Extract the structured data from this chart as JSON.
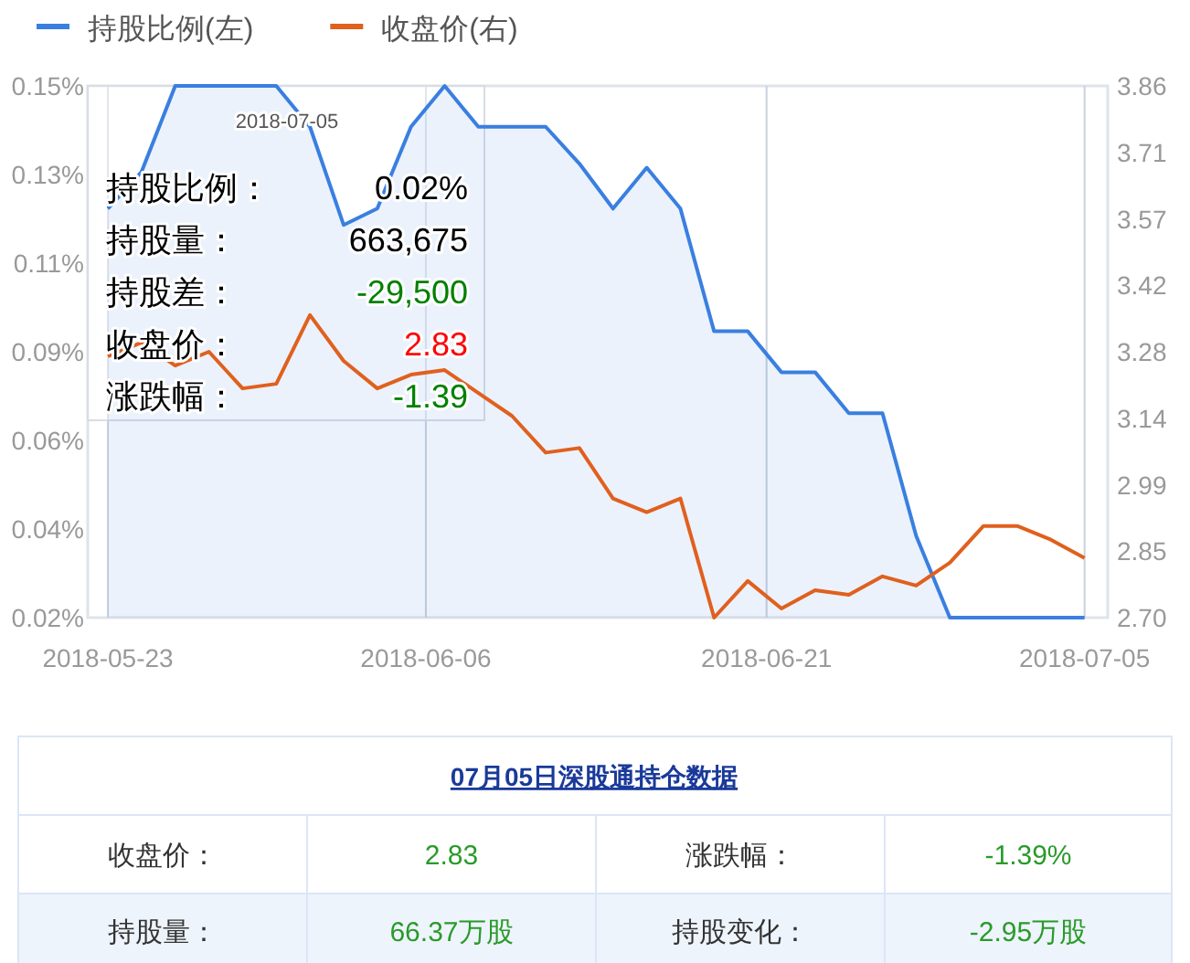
{
  "chart_data": {
    "type": "line",
    "x": [
      "2018-05-23T00:00",
      "2018-05-24T11:35",
      "2018-05-25T23:10",
      "2018-05-27T10:46",
      "2018-05-28T22:21",
      "2018-05-30T09:56",
      "2018-05-31T21:31",
      "2018-06-02T09:06",
      "2018-06-03T20:41",
      "2018-06-05T08:17",
      "2018-06-06T19:52",
      "2018-06-08T07:27",
      "2018-06-09T19:02",
      "2018-06-11T06:37",
      "2018-06-12T18:12",
      "2018-06-14T05:47",
      "2018-06-15T17:23",
      "2018-06-17T04:58",
      "2018-06-18T16:33",
      "2018-06-20T04:08",
      "2018-06-21T15:43",
      "2018-06-23T03:19",
      "2018-06-24T14:54",
      "2018-06-26T02:29",
      "2018-06-27T14:04",
      "2018-06-29T01:39",
      "2018-06-30T13:14",
      "2018-07-02T00:50",
      "2018-07-03T12:25",
      "2018-07-05T00:00"
    ],
    "series": [
      {
        "name": "持股比例(左)",
        "type": "area",
        "color": "#3a7fe0",
        "values": [
          0.12,
          0.129,
          0.15,
          0.15,
          0.15,
          0.15,
          0.14,
          0.116,
          0.12,
          0.14,
          0.15,
          0.14,
          0.14,
          0.14,
          0.131,
          0.12,
          0.13,
          0.12,
          0.09,
          0.09,
          0.08,
          0.08,
          0.07,
          0.07,
          0.04,
          0.02,
          0.02,
          0.02,
          0.02,
          0.02
        ]
      },
      {
        "name": "收盘价(右)",
        "axis": "y2",
        "color": "#e0601e",
        "values": [
          3.27,
          3.3,
          3.25,
          3.28,
          3.2,
          3.21,
          3.36,
          3.26,
          3.2,
          3.23,
          3.24,
          3.19,
          3.14,
          3.06,
          3.07,
          2.96,
          2.93,
          2.96,
          2.7,
          2.78,
          2.72,
          2.76,
          2.75,
          2.79,
          2.77,
          2.82,
          2.9,
          2.9,
          2.87,
          2.83
        ]
      }
    ],
    "xlim": [
      "2018-05-22T02:44",
      "2018-07-06T00:30"
    ],
    "xticks": [
      "2018-05-23",
      "2018-06-06",
      "2018-06-21",
      "2018-07-05"
    ],
    "ylim": [
      0.02,
      0.15
    ],
    "yticks": [
      {
        "value": 0.02,
        "label": "0.02%"
      },
      {
        "value": 0.04167,
        "label": "0.04%"
      },
      {
        "value": 0.06333,
        "label": "0.06%"
      },
      {
        "value": 0.085,
        "label": "0.09%"
      },
      {
        "value": 0.10667,
        "label": "0.11%"
      },
      {
        "value": 0.12833,
        "label": "0.13%"
      },
      {
        "value": 0.15,
        "label": "0.15%"
      }
    ],
    "y2lim": [
      2.7,
      3.86
    ],
    "y2ticks": [
      {
        "value": 2.7,
        "label": "2.70"
      },
      {
        "value": 2.845,
        "label": "2.85"
      },
      2.99,
      {
        "value": 3.135,
        "label": "3.14"
      },
      3.28,
      {
        "value": 3.425,
        "label": "3.42"
      },
      3.57,
      {
        "value": 3.715,
        "label": "3.71"
      },
      3.86
    ],
    "grid": "x",
    "legend": "top left",
    "annotations": [
      "2018-07-05",
      "持股比例：",
      "0.02%",
      "持股量：",
      "663,675",
      "持股差：",
      "-29,500",
      "收盘价：",
      "2.83",
      "涨跌幅：",
      "-1.39",
      "07月05日深股通持仓数据",
      "收盘价：",
      "2.83",
      "涨跌幅：",
      "-1.39%",
      "持股量：",
      "66.37万股",
      "持股变化：",
      "-2.95万股"
    ]
  }
}
